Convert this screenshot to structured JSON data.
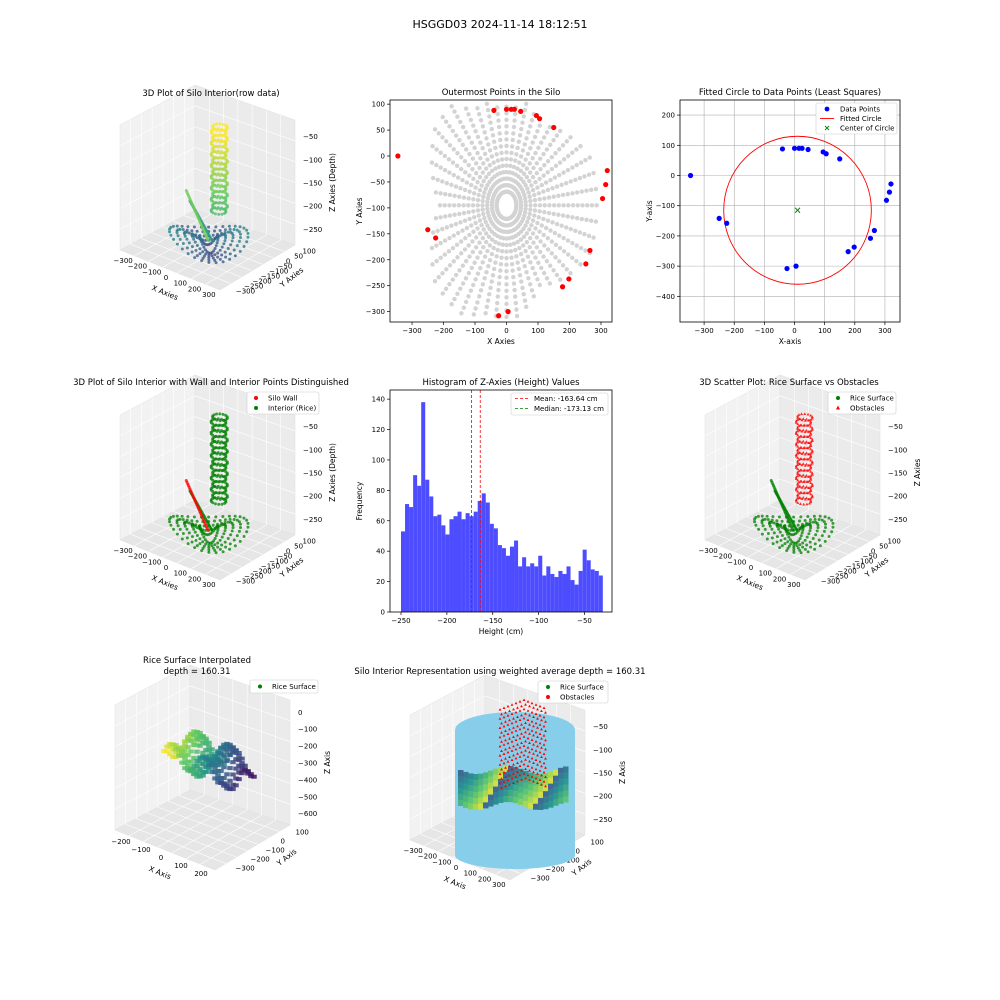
{
  "suptitle": "HSGGD03 2024-11-14 18:12:51",
  "colors": {
    "blue": "#0000ff",
    "red": "#ff0000",
    "green": "#008000",
    "gray": "#d3d3d3",
    "hist": "#4d4dff",
    "sky": "#87ceeb"
  },
  "chart_data": [
    {
      "id": "p1",
      "type": "scatter3d",
      "title": "3D Plot of Silo Interior(row data)",
      "xlabel": "X Axies",
      "ylabel": "Y Axies",
      "zlabel": "Z Axies (Depth)",
      "xticks": [
        "−300",
        "−200",
        "−100",
        "0",
        "100",
        "200",
        "300"
      ],
      "yticks": [
        "100",
        "50",
        "0",
        "−50",
        "−100",
        "−150",
        "−200",
        "−250",
        "−300"
      ],
      "zticks": [
        "−50",
        "−100",
        "−150",
        "−200",
        "−250"
      ],
      "colormap": "viridis"
    },
    {
      "id": "p2",
      "type": "scatter",
      "title": "Outermost Points in the Silo",
      "xlabel": "X Axies",
      "ylabel": "Y Axies",
      "xlim": [
        -370,
        335
      ],
      "ylim": [
        -320,
        108
      ],
      "xticks": [
        -300,
        -200,
        -100,
        0,
        100,
        200,
        300
      ],
      "yticks": [
        100,
        50,
        0,
        -50,
        -100,
        -150,
        -200,
        -250,
        -300
      ],
      "series": [
        {
          "color": "gray",
          "points": "radial-scan"
        },
        {
          "color": "red",
          "points": [
            [
              -345,
              0
            ],
            [
              -40,
              88
            ],
            [
              0,
              90
            ],
            [
              15,
              90
            ],
            [
              25,
              90
            ],
            [
              45,
              86
            ],
            [
              95,
              78
            ],
            [
              105,
              72
            ],
            [
              150,
              55
            ],
            [
              320,
              -28
            ],
            [
              315,
              -55
            ],
            [
              305,
              -82
            ],
            [
              265,
              -182
            ],
            [
              252,
              -208
            ],
            [
              198,
              -237
            ],
            [
              178,
              -252
            ],
            [
              -225,
              -158
            ],
            [
              -250,
              -142
            ],
            [
              -25,
              -308
            ],
            [
              5,
              -300
            ]
          ]
        }
      ]
    },
    {
      "id": "p3",
      "type": "scatter",
      "title": "Fitted Circle to Data Points (Least Squares)",
      "xlabel": "X-axis",
      "ylabel": "Y-axis",
      "xlim": [
        -380,
        350
      ],
      "ylim": [
        -485,
        250
      ],
      "xticks": [
        -300,
        -200,
        -100,
        0,
        100,
        200,
        300
      ],
      "yticks": [
        200,
        100,
        0,
        -100,
        -200,
        -300,
        -400
      ],
      "legend": [
        "Data Points",
        "Fitted Circle",
        "Center of Circle"
      ],
      "center": [
        10,
        -115
      ],
      "radius": 245,
      "points": [
        [
          -345,
          0
        ],
        [
          -40,
          88
        ],
        [
          0,
          90
        ],
        [
          15,
          90
        ],
        [
          25,
          90
        ],
        [
          45,
          86
        ],
        [
          95,
          78
        ],
        [
          105,
          72
        ],
        [
          150,
          55
        ],
        [
          320,
          -28
        ],
        [
          315,
          -55
        ],
        [
          305,
          -82
        ],
        [
          265,
          -182
        ],
        [
          252,
          -208
        ],
        [
          198,
          -237
        ],
        [
          178,
          -252
        ],
        [
          -225,
          -158
        ],
        [
          -250,
          -142
        ],
        [
          -25,
          -308
        ],
        [
          5,
          -300
        ]
      ]
    },
    {
      "id": "p4",
      "type": "scatter3d",
      "title": "3D Plot of Silo Interior with Wall and Interior Points Distinguished",
      "xlabel": "X Axies",
      "ylabel": "Y Axies",
      "zlabel": "Z Axies (Depth)",
      "xticks": [
        "−300",
        "−200",
        "−100",
        "0",
        "100",
        "200",
        "300"
      ],
      "yticks": [
        "100",
        "50",
        "0",
        "−50",
        "−100",
        "−150",
        "−200",
        "−250",
        "−300"
      ],
      "zticks": [
        "−50",
        "−100",
        "−150",
        "−200",
        "−250"
      ],
      "legend": [
        "Silo Wall",
        "Interior (Rice)"
      ]
    },
    {
      "id": "p5",
      "type": "histogram",
      "title": "Histogram of Z-Axies (Height) Values",
      "xlabel": "Height (cm)",
      "ylabel": "Frequency",
      "xlim": [
        -262,
        -20
      ],
      "ylim": [
        0,
        146
      ],
      "xticks": [
        -250,
        -200,
        -150,
        -100,
        -50
      ],
      "yticks": [
        0,
        20,
        40,
        60,
        80,
        100,
        120,
        140
      ],
      "bin_start": -250,
      "bin_width": 4.4,
      "values": [
        53,
        71,
        69,
        90,
        83,
        138,
        87,
        76,
        63,
        64,
        57,
        51,
        61,
        63,
        66,
        61,
        65,
        63,
        66,
        73,
        78,
        72,
        58,
        55,
        44,
        42,
        37,
        43,
        47,
        30,
        36,
        30,
        32,
        30,
        37,
        24,
        30,
        25,
        23,
        27,
        25,
        30,
        21,
        18,
        27,
        41,
        34,
        28,
        27,
        24
      ],
      "mean": -163.64,
      "median": -173.13,
      "legend": [
        "Mean: -163.64 cm",
        "Median: -173.13 cm"
      ]
    },
    {
      "id": "p6",
      "type": "scatter3d",
      "title": "3D Scatter Plot: Rice Surface vs Obstacles",
      "xlabel": "X Axies",
      "ylabel": "Y Axies",
      "zlabel": "Z Axies",
      "xticks": [
        "−300",
        "−200",
        "−100",
        "0",
        "100",
        "200",
        "300"
      ],
      "yticks": [
        "100",
        "50",
        "0",
        "−50",
        "−100",
        "−150",
        "−200",
        "−250",
        "−300"
      ],
      "zticks": [
        "−50",
        "−100",
        "−150",
        "−200",
        "−250"
      ],
      "legend": [
        "Rice Surface",
        "Obstacles"
      ]
    },
    {
      "id": "p7",
      "type": "surface3d",
      "title": "Rice Surface Interpolated",
      "subtitle": "depth = 160.31",
      "xlabel": "X Axis",
      "ylabel": "Y Axis",
      "zlabel": "Z Axis",
      "xticks": [
        "−200",
        "−100",
        "0",
        "100",
        "200"
      ],
      "yticks": [
        "100",
        "0",
        "−100",
        "−200",
        "−300"
      ],
      "zticks": [
        "0",
        "−100",
        "−200",
        "−300",
        "−400",
        "−500",
        "−600"
      ],
      "legend": [
        "Rice Surface"
      ]
    },
    {
      "id": "p8",
      "type": "surface3d",
      "title": "Silo Interior Representation using weighted average depth = 160.31",
      "xlabel": "X Axis",
      "ylabel": "Y Axis",
      "zlabel": "Z Axis",
      "xticks": [
        "−300",
        "−200",
        "−100",
        "0",
        "100",
        "200",
        "300"
      ],
      "yticks": [
        "100",
        "0",
        "−100",
        "−200",
        "−300"
      ],
      "zticks": [
        "−50",
        "−100",
        "−150",
        "−200",
        "−250"
      ],
      "legend": [
        "Rice Surface",
        "Obstacles"
      ]
    }
  ]
}
